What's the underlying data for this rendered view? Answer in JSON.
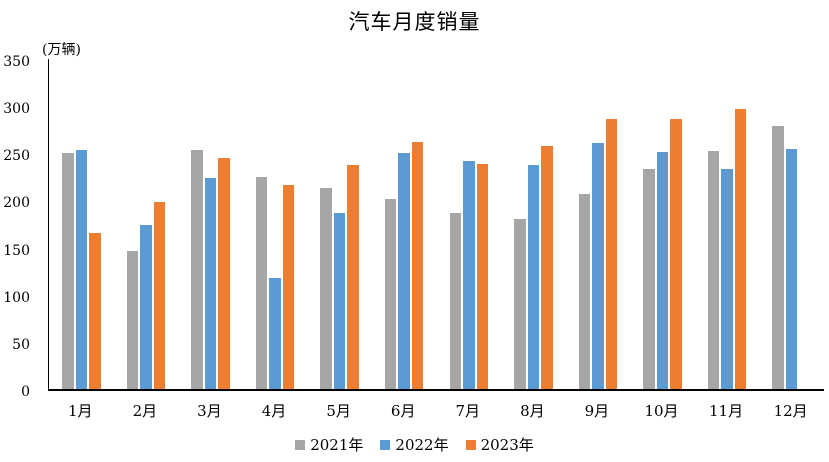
{
  "title": "汽车月度销量",
  "unit_label": "(万辆)",
  "chart_data": {
    "type": "bar",
    "title": "汽车月度销量",
    "unit": "万辆",
    "categories": [
      "1月",
      "2月",
      "3月",
      "4月",
      "5月",
      "6月",
      "7月",
      "8月",
      "9月",
      "10月",
      "11月",
      "12月"
    ],
    "series": [
      {
        "name": "2021年",
        "color": "#A6A6A6",
        "values": [
          250,
          146,
          253,
          225,
          213,
          202,
          187,
          180,
          207,
          233,
          252,
          279
        ]
      },
      {
        "name": "2022年",
        "color": "#5B9BD5",
        "values": [
          253,
          174,
          224,
          118,
          187,
          250,
          242,
          238,
          261,
          251,
          233,
          255
        ]
      },
      {
        "name": "2023年",
        "color": "#ED7D31",
        "values": [
          165,
          198,
          245,
          216,
          238,
          262,
          239,
          258,
          286,
          286,
          297,
          null
        ]
      }
    ],
    "ylim": [
      0,
      350
    ],
    "ytick_step": 50,
    "grid": false,
    "legend_position": "bottom",
    "axis_color": "#000000"
  }
}
